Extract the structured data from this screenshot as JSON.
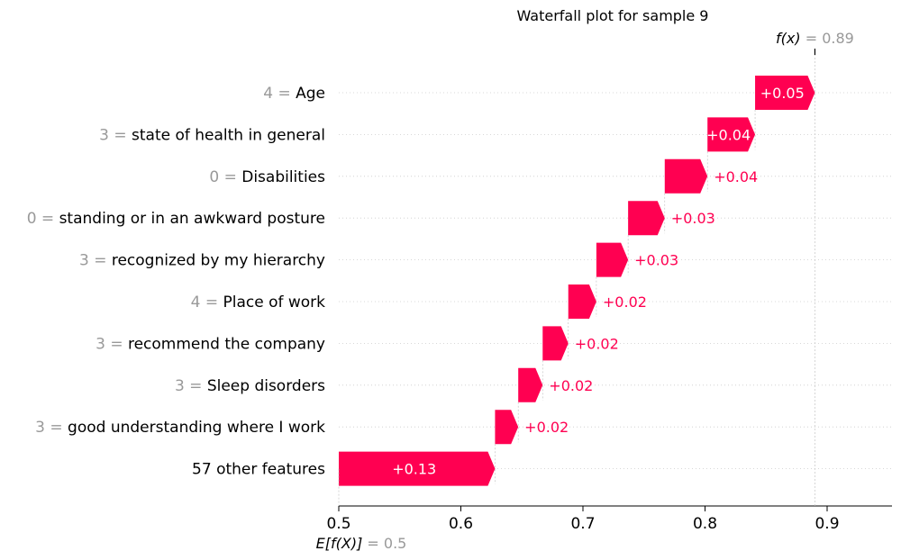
{
  "chart_data": {
    "type": "waterfall",
    "title": "Waterfall plot for sample 9",
    "base_value": 0.5,
    "base_label": "E[f(X)]",
    "base_value_text": "= 0.5",
    "final_value": 0.89,
    "final_label": "f(x)",
    "final_value_text": "= 0.89",
    "xlim": [
      0.5,
      0.955
    ],
    "xticks": [
      {
        "value": 0.5,
        "label": "0.5"
      },
      {
        "value": 0.6,
        "label": "0.6"
      },
      {
        "value": 0.7,
        "label": "0.7"
      },
      {
        "value": 0.8,
        "label": "0.8"
      },
      {
        "value": 0.9,
        "label": "0.9"
      }
    ],
    "positive_color": "#ff0051",
    "rows": [
      {
        "value_text": "4 =",
        "feature": "Age",
        "start": 0.841,
        "end": 0.89,
        "label": "+0.05",
        "label_inside": true
      },
      {
        "value_text": "3 =",
        "feature": "state of health in general",
        "start": 0.802,
        "end": 0.841,
        "label": "+0.04",
        "label_inside": true
      },
      {
        "value_text": "0 =",
        "feature": "Disabilities",
        "start": 0.767,
        "end": 0.802,
        "label": "+0.04",
        "label_inside": false
      },
      {
        "value_text": "0 =",
        "feature": "standing or in an awkward posture",
        "start": 0.737,
        "end": 0.767,
        "label": "+0.03",
        "label_inside": false
      },
      {
        "value_text": "3 =",
        "feature": "recognized by my hierarchy",
        "start": 0.711,
        "end": 0.737,
        "label": "+0.03",
        "label_inside": false
      },
      {
        "value_text": "4 =",
        "feature": "Place of work",
        "start": 0.688,
        "end": 0.711,
        "label": "+0.02",
        "label_inside": false
      },
      {
        "value_text": "3 =",
        "feature": "recommend the company",
        "start": 0.667,
        "end": 0.688,
        "label": "+0.02",
        "label_inside": false
      },
      {
        "value_text": "3 =",
        "feature": "Sleep disorders",
        "start": 0.647,
        "end": 0.667,
        "label": "+0.02",
        "label_inside": false
      },
      {
        "value_text": "3 =",
        "feature": "good understanding where I work",
        "start": 0.628,
        "end": 0.647,
        "label": "+0.02",
        "label_inside": false
      },
      {
        "value_text": "",
        "feature": "57 other features",
        "start": 0.5,
        "end": 0.628,
        "label": "+0.13",
        "label_inside": true
      }
    ]
  }
}
